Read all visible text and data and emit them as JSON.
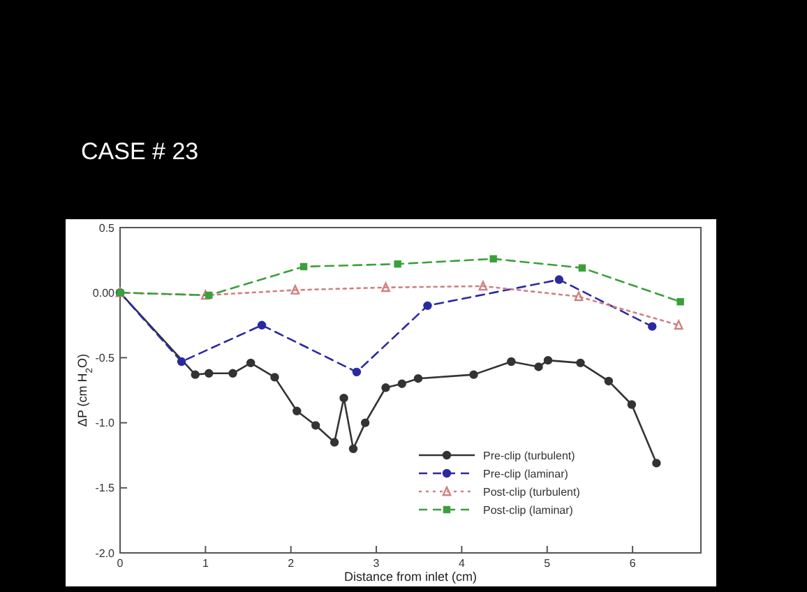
{
  "chart_data": {
    "type": "line",
    "title": "CASE # 23",
    "xlabel": "Distance from inlet (cm)",
    "ylabel": "ΔP (cm H$_{2}$O)",
    "xlim": [
      0,
      6.8
    ],
    "xticks": [
      0,
      1,
      2,
      3,
      4,
      5,
      6
    ],
    "ylim": [
      -2,
      0.5
    ],
    "yticks": [
      {
        "value": -2,
        "label": "-2.0"
      },
      {
        "value": -1.5,
        "label": "-1.5"
      },
      {
        "value": -1,
        "label": "-1.0"
      },
      {
        "value": -0.5,
        "label": "-0.5"
      },
      {
        "value": 0,
        "label": "0.00"
      },
      {
        "value": 0.5,
        "label": "0.5"
      }
    ],
    "grid": false,
    "legend": "bottom right",
    "series": [
      {
        "name": "Pre-clip (turbulent)",
        "color": "#333333",
        "marker": "circle",
        "line_style": "solid",
        "x": [
          0,
          0.88,
          1.04,
          1.32,
          1.53,
          1.81,
          2.07,
          2.29,
          2.51,
          2.62,
          2.73,
          2.87,
          3.11,
          3.3,
          3.49,
          4.14,
          4.58,
          4.9,
          5.01,
          5.39,
          5.72,
          5.99,
          6.28
        ],
        "values": [
          0,
          -0.63,
          -0.62,
          -0.62,
          -0.54,
          -0.65,
          -0.91,
          -1.02,
          -1.15,
          -0.81,
          -1.2,
          -1.0,
          -0.73,
          -0.7,
          -0.66,
          -0.63,
          -0.53,
          -0.57,
          -0.52,
          -0.54,
          -0.68,
          -0.86,
          -1.31
        ]
      },
      {
        "name": "Pre-clip (laminar)",
        "color": "#2a2aa0",
        "marker": "circle",
        "line_style": "dashed",
        "x": [
          0,
          0.72,
          1.66,
          2.77,
          3.6,
          5.14,
          6.23
        ],
        "values": [
          0,
          -0.53,
          -0.25,
          -0.61,
          -0.1,
          0.1,
          -0.26
        ]
      },
      {
        "name": "Post-clip (turbulent)",
        "color": "#d08080",
        "marker": "triangle",
        "line_style": "dotted",
        "x": [
          0,
          1.0,
          2.05,
          3.11,
          4.25,
          5.37,
          6.54
        ],
        "values": [
          0,
          -0.02,
          0.02,
          0.04,
          0.05,
          -0.03,
          -0.25
        ]
      },
      {
        "name": "Post-clip (laminar)",
        "color": "#3aa03a",
        "marker": "square",
        "line_style": "dashed",
        "x": [
          0,
          1.04,
          2.15,
          3.25,
          4.37,
          5.41,
          6.56
        ],
        "values": [
          0,
          -0.02,
          0.2,
          0.22,
          0.26,
          0.19,
          -0.07
        ]
      }
    ]
  }
}
